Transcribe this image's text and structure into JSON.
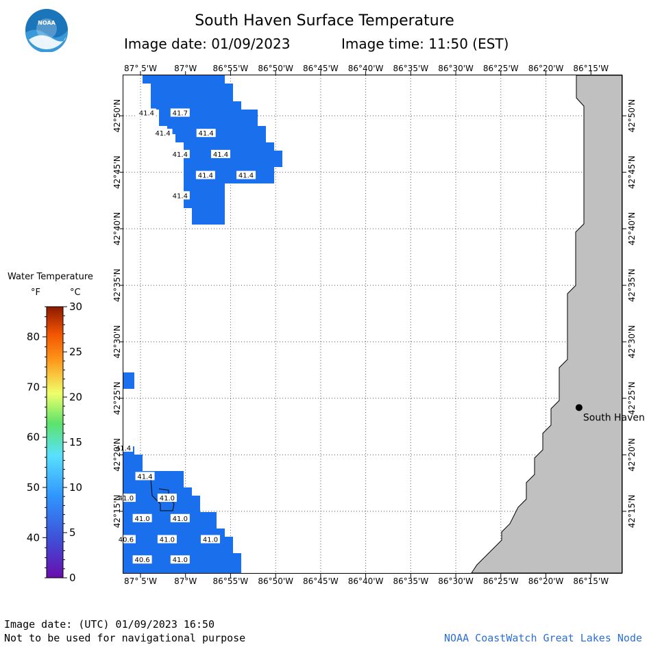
{
  "header": {
    "title": "South Haven Surface Temperature",
    "image_date_label": "Image date: 01/09/2023",
    "image_time_label": "Image time: 11:50 (EST)"
  },
  "map": {
    "lon_labels": [
      "87° 5'W",
      "87°W",
      "86°55'W",
      "86°50'W",
      "86°45'W",
      "86°40'W",
      "86°35'W",
      "86°30'W",
      "86°25'W",
      "86°20'W",
      "86°15'W"
    ],
    "lat_labels": [
      "42°50'N",
      "42°45'N",
      "42°40'N",
      "42°35'N",
      "42°30'N",
      "42°25'N",
      "42°20'N",
      "42°15'N"
    ],
    "city": "South Haven",
    "colors": {
      "water": "#1a6fed",
      "land": "#c0c0c0",
      "grid": "#555555"
    },
    "temps": [
      {
        "v": "41.4",
        "lon": -87.072,
        "lat": 42.838
      },
      {
        "v": "41.7",
        "lon": -87.01,
        "lat": 42.838
      },
      {
        "v": "41.4",
        "lon": -87.042,
        "lat": 42.808
      },
      {
        "v": "41.4",
        "lon": -86.962,
        "lat": 42.808
      },
      {
        "v": "41.4",
        "lon": -87.01,
        "lat": 42.777
      },
      {
        "v": "41.4",
        "lon": -86.935,
        "lat": 42.777
      },
      {
        "v": "41.4",
        "lon": -86.963,
        "lat": 42.746
      },
      {
        "v": "41.4",
        "lon": -86.888,
        "lat": 42.746
      },
      {
        "v": "41.4",
        "lon": -87.01,
        "lat": 42.716
      },
      {
        "v": "41.4",
        "lon": -87.115,
        "lat": 42.344
      },
      {
        "v": "41.4",
        "lon": -87.075,
        "lat": 42.302
      },
      {
        "v": "41.0",
        "lon": -87.11,
        "lat": 42.27
      },
      {
        "v": "41.0",
        "lon": -87.034,
        "lat": 42.27
      },
      {
        "v": "41.0",
        "lon": -87.08,
        "lat": 42.24
      },
      {
        "v": "41.0",
        "lon": -87.01,
        "lat": 42.24
      },
      {
        "v": "40.6",
        "lon": -87.11,
        "lat": 42.209
      },
      {
        "v": "41.0",
        "lon": -87.034,
        "lat": 42.209
      },
      {
        "v": "41.0",
        "lon": -86.954,
        "lat": 42.209
      },
      {
        "v": "40.6",
        "lon": -87.08,
        "lat": 42.179
      },
      {
        "v": "41.0",
        "lon": -87.01,
        "lat": 42.179
      }
    ]
  },
  "legend": {
    "title": "Water Temperature",
    "f_label": "°F",
    "c_label": "°C",
    "f_ticks": [
      "80",
      "70",
      "60",
      "50",
      "40"
    ],
    "c_ticks": [
      "30",
      "25",
      "20",
      "15",
      "10",
      "5",
      "0"
    ]
  },
  "footer": {
    "utc_label": "Image date: (UTC) 01/09/2023  16:50",
    "disclaimer": "Not to be used for navigational purpose",
    "credit": "NOAA CoastWatch Great Lakes Node"
  }
}
